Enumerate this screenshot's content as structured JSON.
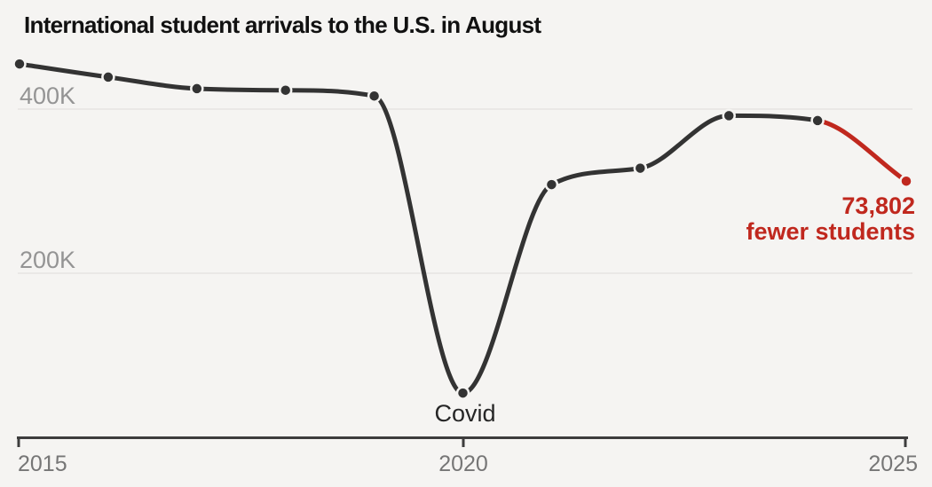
{
  "title": "International student arrivals to the U.S. in August",
  "colors": {
    "background": "#f5f4f2",
    "line": "#333333",
    "highlight": "#c0281e",
    "gridline": "#e6e4e1",
    "axis": "#3d3d3d",
    "x_tick_label": "#767676",
    "y_tick_label": "#949494"
  },
  "labels": {
    "ytick_400": "400K",
    "ytick_200": "200K",
    "xtick_2015": "2015",
    "xtick_2020": "2020",
    "xtick_2025": "2025",
    "covid": "Covid",
    "annotation_line1": "73,802",
    "annotation_line2": "fewer students"
  },
  "chart_data": {
    "type": "line",
    "title": "International student arrivals to the U.S. in August",
    "x": [
      2015,
      2016,
      2017,
      2018,
      2019,
      2020,
      2021,
      2022,
      2023,
      2024,
      2025
    ],
    "values": [
      455000,
      439000,
      425000,
      423000,
      416000,
      54000,
      308000,
      328000,
      392000,
      386000,
      312198
    ],
    "xlabel": "",
    "ylabel": "",
    "xticks": [
      2015,
      2020,
      2025
    ],
    "yticks": [
      200000,
      400000
    ],
    "ytick_labels": [
      "200K",
      "400K"
    ],
    "ylim": [
      0,
      508000
    ],
    "grid": "horizontal",
    "legend": "none",
    "curve": "smooth-monotone",
    "highlight_segment": {
      "from": 2024,
      "to": 2025,
      "color": "#c0281e"
    },
    "annotations": [
      {
        "text": "Covid",
        "year": 2020,
        "position": "below-point"
      },
      {
        "text": "73,802 fewer students",
        "year": 2025,
        "position": "below-left-of-point",
        "color": "#c0281e"
      }
    ]
  }
}
